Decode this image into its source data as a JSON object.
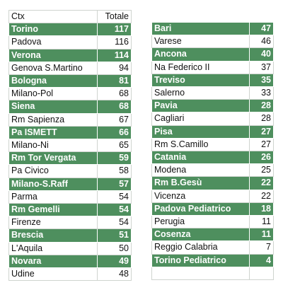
{
  "chart_data": {
    "type": "table",
    "columns": [
      "Ctx",
      "Totale"
    ],
    "highlight_color": "#4e8f5e",
    "tables": [
      {
        "rows": [
          {
            "ctx": "Torino",
            "totale": "117",
            "highlight": true
          },
          {
            "ctx": "Padova",
            "totale": "116",
            "highlight": false
          },
          {
            "ctx": "Verona",
            "totale": "114",
            "highlight": true
          },
          {
            "ctx": "Genova S.Martino",
            "totale": "94",
            "highlight": false
          },
          {
            "ctx": "Bologna",
            "totale": "81",
            "highlight": true
          },
          {
            "ctx": "Milano-Pol",
            "totale": "68",
            "highlight": false
          },
          {
            "ctx": "Siena",
            "totale": "68",
            "highlight": true
          },
          {
            "ctx": "Rm Sapienza",
            "totale": "67",
            "highlight": false
          },
          {
            "ctx": "Pa ISMETT",
            "totale": "66",
            "highlight": true
          },
          {
            "ctx": "Milano-Ni",
            "totale": "65",
            "highlight": false
          },
          {
            "ctx": "Rm Tor Vergata",
            "totale": "59",
            "highlight": true
          },
          {
            "ctx": "Pa Civico",
            "totale": "58",
            "highlight": false
          },
          {
            "ctx": "Milano-S.Raff",
            "totale": "57",
            "highlight": true
          },
          {
            "ctx": "Parma",
            "totale": "54",
            "highlight": false
          },
          {
            "ctx": "Rm Gemelli",
            "totale": "54",
            "highlight": true
          },
          {
            "ctx": "Firenze",
            "totale": "54",
            "highlight": false
          },
          {
            "ctx": "Brescia",
            "totale": "51",
            "highlight": true
          },
          {
            "ctx": "L'Aquila",
            "totale": "50",
            "highlight": false
          },
          {
            "ctx": "Novara",
            "totale": "49",
            "highlight": true
          },
          {
            "ctx": "Udine",
            "totale": "48",
            "highlight": false
          }
        ]
      },
      {
        "rows": [
          {
            "ctx": "Bari",
            "totale": "47",
            "highlight": true
          },
          {
            "ctx": "Varese",
            "totale": "46",
            "highlight": false
          },
          {
            "ctx": "Ancona",
            "totale": "40",
            "highlight": true
          },
          {
            "ctx": "Na Federico II",
            "totale": "37",
            "highlight": false
          },
          {
            "ctx": "Treviso",
            "totale": "35",
            "highlight": true
          },
          {
            "ctx": "Salerno",
            "totale": "33",
            "highlight": false
          },
          {
            "ctx": "Pavia",
            "totale": "28",
            "highlight": true
          },
          {
            "ctx": "Cagliari",
            "totale": "28",
            "highlight": false
          },
          {
            "ctx": "Pisa",
            "totale": "27",
            "highlight": true
          },
          {
            "ctx": "Rm S.Camillo",
            "totale": "27",
            "highlight": false
          },
          {
            "ctx": "Catania",
            "totale": "26",
            "highlight": true
          },
          {
            "ctx": "Modena",
            "totale": "25",
            "highlight": false
          },
          {
            "ctx": "Rm B.Gesù",
            "totale": "22",
            "highlight": true
          },
          {
            "ctx": "Vicenza",
            "totale": "22",
            "highlight": false
          },
          {
            "ctx": "Padova Pediatrico",
            "totale": "18",
            "highlight": true
          },
          {
            "ctx": "Perugia",
            "totale": "11",
            "highlight": false
          },
          {
            "ctx": "Cosenza",
            "totale": "11",
            "highlight": true
          },
          {
            "ctx": "Reggio Calabria",
            "totale": "7",
            "highlight": false
          },
          {
            "ctx": "Torino Pediatrico",
            "totale": "4",
            "highlight": true
          }
        ]
      }
    ]
  }
}
